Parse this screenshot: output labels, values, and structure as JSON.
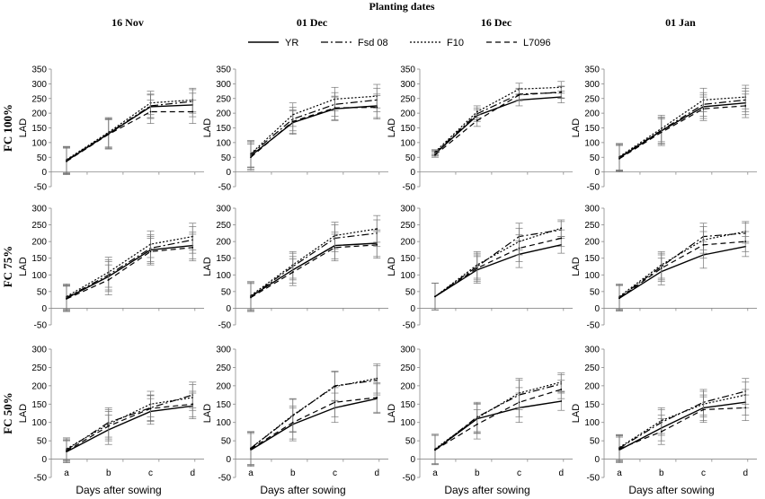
{
  "header": {
    "title": "Planting dates"
  },
  "columns": [
    "16 Nov",
    "01 Dec",
    "16 Dec",
    "01 Jan"
  ],
  "rows": [
    "FC 100%",
    "FC 75%",
    "FC 50%"
  ],
  "legend": [
    {
      "name": "YR",
      "style": "solid"
    },
    {
      "name": "Fsd 08",
      "style": "dashdot"
    },
    {
      "name": "F10",
      "style": "dotted"
    },
    {
      "name": "L7096",
      "style": "dashed"
    }
  ],
  "axis": {
    "ylabel": "LAD",
    "xlabel": "Days after sowing",
    "categories": [
      "a",
      "b",
      "c",
      "d"
    ],
    "rows": [
      {
        "ylim": [
          -50,
          350
        ],
        "ticks": [
          "350",
          "300",
          "250",
          "200",
          "150",
          "100",
          "50",
          "0",
          "-50"
        ]
      },
      {
        "ylim": [
          -50,
          300
        ],
        "ticks": [
          "300",
          "250",
          "200",
          "150",
          "100",
          "50",
          "0",
          "-50"
        ]
      },
      {
        "ylim": [
          -50,
          300
        ],
        "ticks": [
          "300",
          "250",
          "200",
          "150",
          "100",
          "50",
          "0",
          "-50"
        ]
      }
    ]
  },
  "chart_data": {
    "type": "line",
    "title": "Planting dates",
    "xlabel": "Days after sowing",
    "ylabel": "LAD",
    "categories": [
      "a",
      "b",
      "c",
      "d"
    ],
    "series_names": [
      "YR",
      "Fsd 08",
      "F10",
      "L7096"
    ],
    "panels": [
      {
        "row": "FC 100%",
        "col": "16 Nov",
        "ylim": [
          -50,
          350
        ],
        "series": [
          {
            "name": "YR",
            "values": [
              38,
              130,
              222,
              228
            ],
            "err": [
              45,
              50,
              40,
              40
            ]
          },
          {
            "name": "Fsd 08",
            "values": [
              40,
              132,
              225,
              240
            ],
            "err": [
              45,
              50,
              40,
              40
            ]
          },
          {
            "name": "F10",
            "values": [
              42,
              135,
              235,
              245
            ],
            "err": [
              45,
              50,
              40,
              40
            ]
          },
          {
            "name": "L7096",
            "values": [
              36,
              128,
              205,
              205
            ],
            "err": [
              45,
              50,
              40,
              40
            ]
          }
        ]
      },
      {
        "row": "FC 100%",
        "col": "01 Dec",
        "ylim": [
          -50,
          350
        ],
        "series": [
          {
            "name": "YR",
            "values": [
              55,
              168,
              215,
              225
            ],
            "err": [
              45,
              40,
              40,
              40
            ]
          },
          {
            "name": "Fsd 08",
            "values": [
              60,
              180,
              230,
              245
            ],
            "err": [
              45,
              40,
              40,
              40
            ]
          },
          {
            "name": "F10",
            "values": [
              62,
              195,
              248,
              258
            ],
            "err": [
              45,
              40,
              40,
              40
            ]
          },
          {
            "name": "L7096",
            "values": [
              50,
              172,
              218,
              220
            ],
            "err": [
              45,
              40,
              40,
              40
            ]
          }
        ]
      },
      {
        "row": "FC 100%",
        "col": "16 Dec",
        "ylim": [
          -50,
          350
        ],
        "series": [
          {
            "name": "YR",
            "values": [
              62,
              192,
              245,
              255
            ],
            "err": [
              8,
              20,
              20,
              20
            ]
          },
          {
            "name": "Fsd 08",
            "values": [
              65,
              198,
              265,
              270
            ],
            "err": [
              8,
              20,
              20,
              20
            ]
          },
          {
            "name": "F10",
            "values": [
              68,
              205,
              282,
              288
            ],
            "err": [
              8,
              20,
              20,
              20
            ]
          },
          {
            "name": "L7096",
            "values": [
              58,
              175,
              262,
              272
            ],
            "err": [
              8,
              20,
              20,
              20
            ]
          }
        ]
      },
      {
        "row": "FC 100%",
        "col": "01 Jan",
        "ylim": [
          -50,
          350
        ],
        "series": [
          {
            "name": "YR",
            "values": [
              48,
              140,
              222,
              235
            ],
            "err": [
              45,
              45,
              40,
              40
            ]
          },
          {
            "name": "Fsd 08",
            "values": [
              50,
              142,
              230,
              245
            ],
            "err": [
              45,
              45,
              40,
              40
            ]
          },
          {
            "name": "F10",
            "values": [
              52,
              148,
              245,
              255
            ],
            "err": [
              45,
              45,
              40,
              40
            ]
          },
          {
            "name": "L7096",
            "values": [
              45,
              135,
              215,
              225
            ],
            "err": [
              45,
              45,
              40,
              40
            ]
          }
        ]
      },
      {
        "row": "FC 75%",
        "col": "16 Nov",
        "ylim": [
          -50,
          300
        ],
        "series": [
          {
            "name": "YR",
            "values": [
              30,
              95,
              175,
              188
            ],
            "err": [
              38,
              45,
              40,
              40
            ]
          },
          {
            "name": "Fsd 08",
            "values": [
              32,
              100,
              180,
              205
            ],
            "err": [
              38,
              45,
              40,
              40
            ]
          },
          {
            "name": "F10",
            "values": [
              35,
              108,
              192,
              215
            ],
            "err": [
              38,
              45,
              40,
              40
            ]
          },
          {
            "name": "L7096",
            "values": [
              28,
              85,
              170,
              182
            ],
            "err": [
              38,
              45,
              40,
              40
            ]
          }
        ]
      },
      {
        "row": "FC 75%",
        "col": "01 Dec",
        "ylim": [
          -50,
          300
        ],
        "series": [
          {
            "name": "YR",
            "values": [
              35,
              115,
              188,
              195
            ],
            "err": [
              42,
              40,
              40,
              40
            ]
          },
          {
            "name": "Fsd 08",
            "values": [
              35,
              125,
              210,
              225
            ],
            "err": [
              42,
              40,
              40,
              40
            ]
          },
          {
            "name": "F10",
            "values": [
              38,
              130,
              218,
              238
            ],
            "err": [
              42,
              40,
              40,
              40
            ]
          },
          {
            "name": "L7096",
            "values": [
              32,
              108,
              182,
              190
            ],
            "err": [
              42,
              40,
              40,
              40
            ]
          }
        ]
      },
      {
        "row": "FC 75%",
        "col": "16 Dec",
        "ylim": [
          -50,
          300
        ],
        "series": [
          {
            "name": "YR",
            "values": [
              35,
              115,
              162,
              190
            ],
            "err": [
              40,
              40,
              40,
              25
            ]
          },
          {
            "name": "Fsd 08",
            "values": [
              35,
              125,
              215,
              235
            ],
            "err": [
              40,
              40,
              40,
              25
            ]
          },
          {
            "name": "F10",
            "values": [
              35,
              130,
              200,
              240
            ],
            "err": [
              40,
              40,
              40,
              25
            ]
          },
          {
            "name": "L7096",
            "values": [
              35,
              120,
              180,
              210
            ],
            "err": [
              40,
              40,
              40,
              25
            ]
          }
        ]
      },
      {
        "row": "FC 75%",
        "col": "01 Jan",
        "ylim": [
          -50,
          300
        ],
        "series": [
          {
            "name": "YR",
            "values": [
              30,
              110,
              160,
              185
            ],
            "err": [
              38,
              40,
              40,
              30
            ]
          },
          {
            "name": "Fsd 08",
            "values": [
              32,
              125,
              215,
              225
            ],
            "err": [
              38,
              40,
              40,
              30
            ]
          },
          {
            "name": "F10",
            "values": [
              35,
              130,
              205,
              230
            ],
            "err": [
              38,
              40,
              40,
              30
            ]
          },
          {
            "name": "L7096",
            "values": [
              30,
              120,
              190,
              200
            ],
            "err": [
              38,
              40,
              40,
              30
            ]
          }
        ]
      },
      {
        "row": "FC 50%",
        "col": "16 Nov",
        "ylim": [
          -50,
          300
        ],
        "series": [
          {
            "name": "YR",
            "values": [
              20,
              80,
              130,
              145
            ],
            "err": [
              30,
              40,
              35,
              35
            ]
          },
          {
            "name": "Fsd 08",
            "values": [
              25,
              100,
              140,
              175
            ],
            "err": [
              30,
              40,
              35,
              35
            ]
          },
          {
            "name": "F10",
            "values": [
              28,
              95,
              150,
              168
            ],
            "err": [
              30,
              40,
              35,
              35
            ]
          },
          {
            "name": "L7096",
            "values": [
              22,
              90,
              138,
              150
            ],
            "err": [
              30,
              40,
              35,
              35
            ]
          }
        ]
      },
      {
        "row": "FC 50%",
        "col": "01 Dec",
        "ylim": [
          -50,
          300
        ],
        "series": [
          {
            "name": "YR",
            "values": [
              25,
              95,
              140,
              165
            ],
            "err": [
              45,
              45,
              40,
              40
            ]
          },
          {
            "name": "Fsd 08",
            "values": [
              30,
              118,
              200,
              215
            ],
            "err": [
              45,
              45,
              40,
              40
            ]
          },
          {
            "name": "F10",
            "values": [
              30,
              120,
              198,
              220
            ],
            "err": [
              45,
              45,
              40,
              40
            ]
          },
          {
            "name": "L7096",
            "values": [
              28,
              100,
              155,
              168
            ],
            "err": [
              45,
              45,
              40,
              40
            ]
          }
        ]
      },
      {
        "row": "FC 50%",
        "col": "16 Dec",
        "ylim": [
          -50,
          300
        ],
        "series": [
          {
            "name": "YR",
            "values": [
              25,
              110,
              140,
              158
            ],
            "err": [
              40,
              40,
              40,
              25
            ]
          },
          {
            "name": "Fsd 08",
            "values": [
              25,
              115,
              175,
              205
            ],
            "err": [
              40,
              40,
              40,
              25
            ]
          },
          {
            "name": "F10",
            "values": [
              28,
              112,
              180,
              210
            ],
            "err": [
              40,
              40,
              40,
              25
            ]
          },
          {
            "name": "L7096",
            "values": [
              25,
              95,
              155,
              190
            ],
            "err": [
              40,
              40,
              40,
              25
            ]
          }
        ]
      },
      {
        "row": "FC 50%",
        "col": "01 Jan",
        "ylim": [
          -50,
          300
        ],
        "series": [
          {
            "name": "YR",
            "values": [
              25,
              85,
              140,
              155
            ],
            "err": [
              35,
              35,
              35,
              35
            ]
          },
          {
            "name": "Fsd 08",
            "values": [
              30,
              100,
              155,
              185
            ],
            "err": [
              35,
              35,
              35,
              35
            ]
          },
          {
            "name": "F10",
            "values": [
              32,
              105,
              150,
              175
            ],
            "err": [
              35,
              35,
              35,
              35
            ]
          },
          {
            "name": "L7096",
            "values": [
              28,
              75,
              135,
              140
            ],
            "err": [
              35,
              35,
              35,
              35
            ]
          }
        ]
      }
    ]
  }
}
